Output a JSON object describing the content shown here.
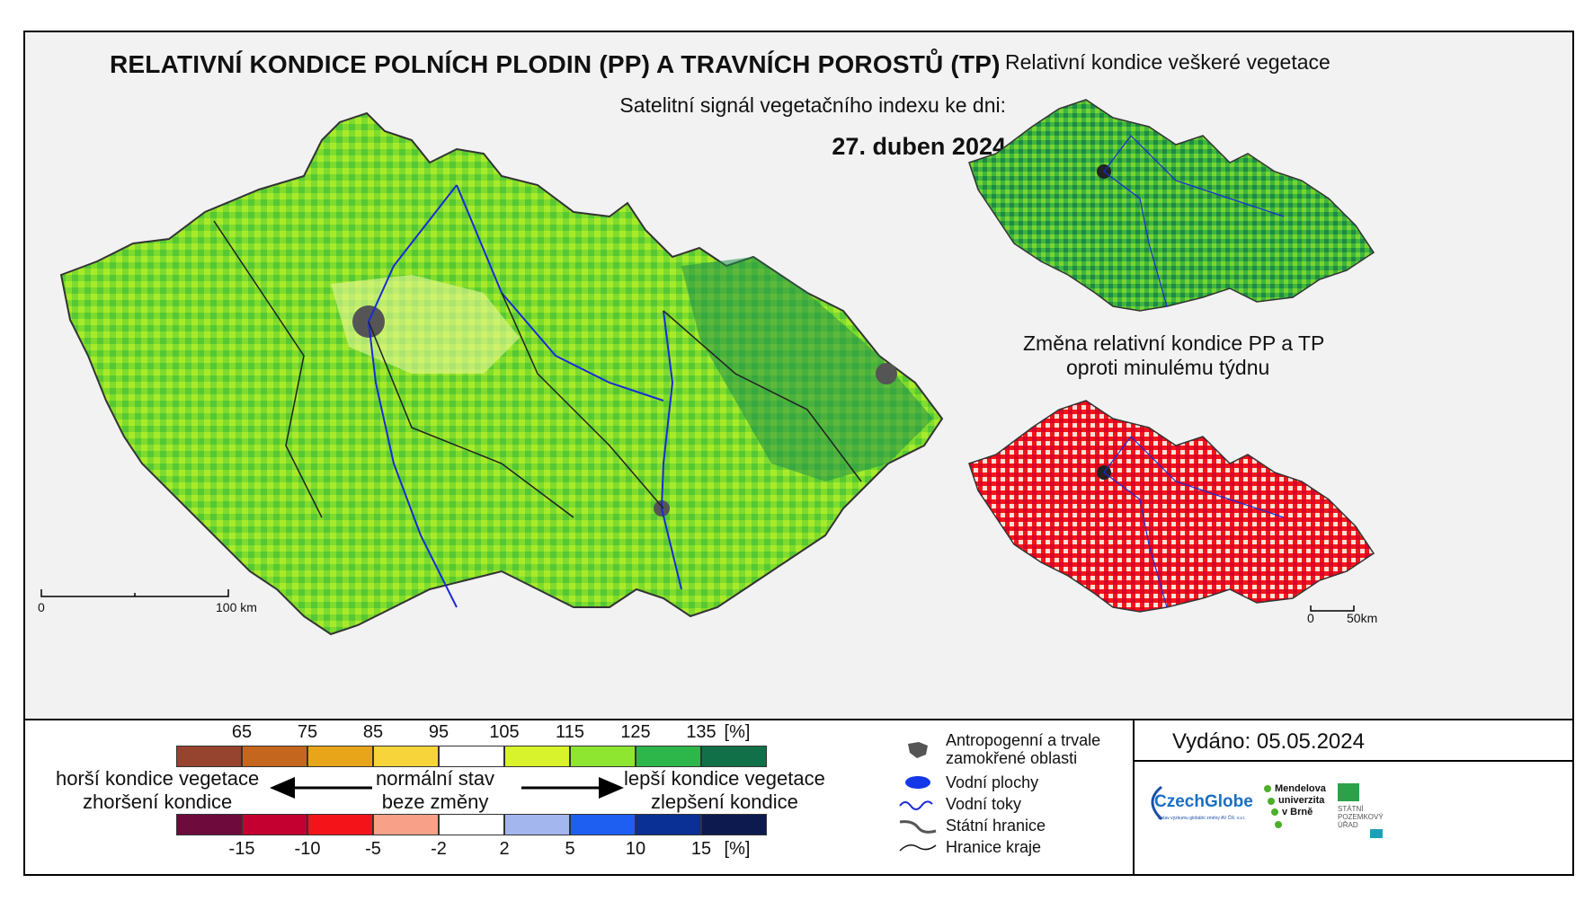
{
  "title": "RELATIVNÍ KONDICE POLNÍCH PLODIN (PP) A TRAVNÍCH POROSTŮ (TP)",
  "subtitle": "Satelitní signál vegetačního indexu ke dni:",
  "date": "27. duben 2024",
  "side_maps": {
    "all_vegetation_title": "Relativní kondice veškeré vegetace",
    "change_title_line1": "Změna relativní kondice PP a TP",
    "change_title_line2": "oproti minulému týdnu"
  },
  "scale_main": {
    "start": "0",
    "end": "100 km"
  },
  "scale_side": {
    "start": "0",
    "end": "50km"
  },
  "legend": {
    "condition_unit": "[%]",
    "condition_ticks": [
      "65",
      "75",
      "85",
      "95",
      "105",
      "115",
      "125",
      "135"
    ],
    "condition_colors": [
      "#96432f",
      "#c5661f",
      "#e8a51a",
      "#f7d43a",
      "#ffffff",
      "#d8f22b",
      "#8ee630",
      "#2db74a",
      "#127048"
    ],
    "change_unit": "[%]",
    "change_ticks": [
      "-15",
      "-10",
      "-5",
      "-2",
      "2",
      "5",
      "10",
      "15"
    ],
    "change_colors": [
      "#6e0a3c",
      "#c3002f",
      "#f5131a",
      "#f9a088",
      "#ffffff",
      "#a3b6ee",
      "#1e5ff2",
      "#0a3096",
      "#0c1a50"
    ],
    "worse_line1": "horší kondice vegetace",
    "worse_line2": "zhoršení kondice",
    "normal_line1": "normální stav",
    "normal_line2": "beze změny",
    "better_line1": "lepší kondice vegetace",
    "better_line2": "zlepšení kondice"
  },
  "key": {
    "anthropogenic_line1": "Antropogenní a trvale",
    "anthropogenic_line2": "zamokřené oblasti",
    "water_bodies": "Vodní plochy",
    "rivers": "Vodní toky",
    "state_border": "Státní hranice",
    "region_border": "Hranice kraje"
  },
  "issued": "Vydáno: 05.05.2024",
  "logos": {
    "czechglobe": "CzechGlobe",
    "czechglobe_sub": "Ústav výzkumu globální změny AV ČR, v.v.i.",
    "mendel_line1": "Mendelova",
    "mendel_line2": "univerzita",
    "mendel_line3": "v Brně",
    "spu_line1": "STÁTNÍ",
    "spu_line2": "POZEMKOVÝ",
    "spu_line3": "ÚŘAD"
  }
}
